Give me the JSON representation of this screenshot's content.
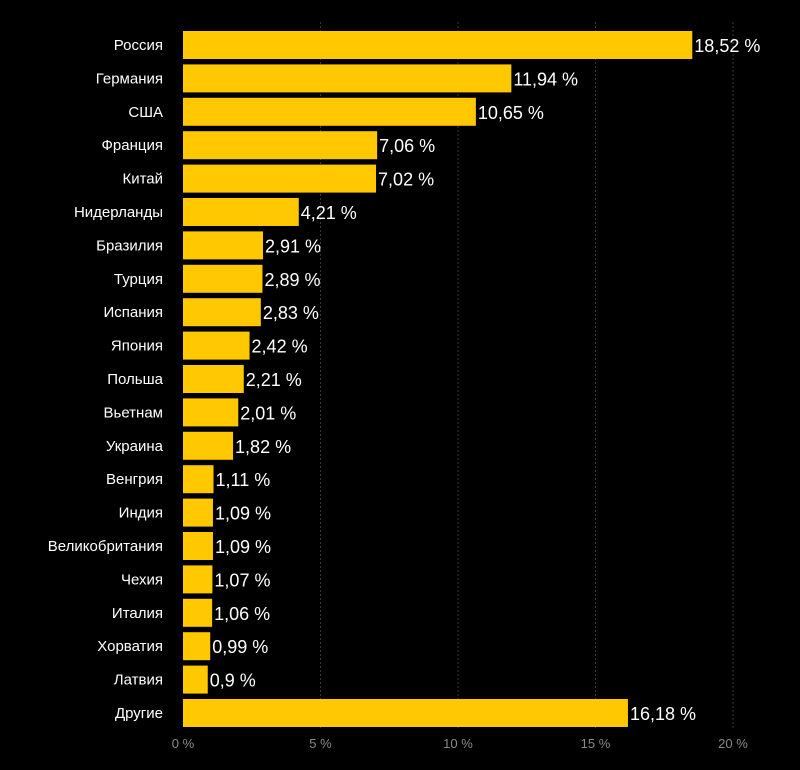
{
  "chart_data": {
    "type": "bar",
    "orientation": "horizontal",
    "title": "",
    "xlabel": "",
    "ylabel": "",
    "xlim": [
      0,
      20
    ],
    "x_ticks": [
      0,
      5,
      10,
      15,
      20
    ],
    "x_tick_labels": [
      "0 %",
      "5 %",
      "10 %",
      "15 %",
      "20 %"
    ],
    "grid": true,
    "bar_color": "#FFC800",
    "categories": [
      "Россия",
      "Германия",
      "США",
      "Франция",
      "Китай",
      "Нидерланды",
      "Бразилия",
      "Турция",
      "Испания",
      "Япония",
      "Польша",
      "Вьетнам",
      "Украина",
      "Венгрия",
      "Индия",
      "Великобритания",
      "Чехия",
      "Италия",
      "Хорватия",
      "Латвия",
      "Другие"
    ],
    "values": [
      18.52,
      11.94,
      10.65,
      7.06,
      7.02,
      4.21,
      2.91,
      2.89,
      2.83,
      2.42,
      2.21,
      2.01,
      1.82,
      1.11,
      1.09,
      1.09,
      1.07,
      1.06,
      0.99,
      0.9,
      16.18
    ],
    "value_labels": [
      "18,52 %",
      "11,94 %",
      "10,65 %",
      "7,06 %",
      "7,02 %",
      "4,21 %",
      "2,91 %",
      "2,89 %",
      "2,83 %",
      "2,42 %",
      "2,21 %",
      "2,01 %",
      "1,82 %",
      "1,11 %",
      "1,09 %",
      "1,09 %",
      "1,07 %",
      "1,06 %",
      "0,99 %",
      "0,9 %",
      "16,18 %"
    ]
  }
}
